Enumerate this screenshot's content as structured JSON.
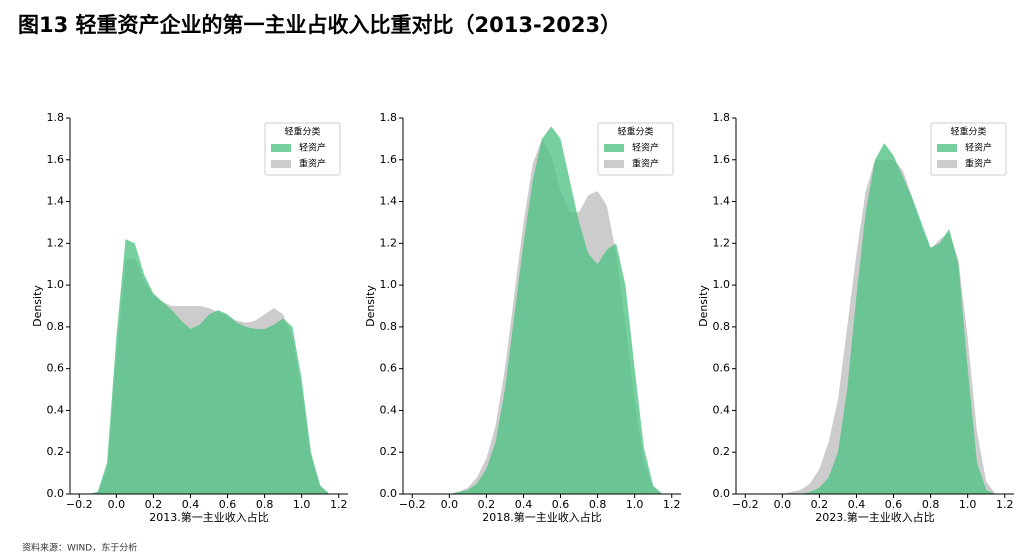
{
  "title": "图13 轻重资产企业的第一主业占收入比重对比（2013-2023）",
  "source": "资料来源：WIND，东于分析",
  "chart_data": [
    {
      "type": "area",
      "xlabel": "2013.第一主业收入占比",
      "ylabel": "Density",
      "legend_title": "轻重分类",
      "legend": "upper right",
      "xlim": [
        -0.25,
        1.25
      ],
      "ylim": [
        0,
        1.8
      ],
      "xticks": [
        {
          "value": -0.2,
          "label": "−0.2"
        },
        {
          "value": 0,
          "label": "0.0"
        },
        0.2,
        0.4,
        0.6,
        0.8,
        {
          "value": 1,
          "label": "1.0"
        },
        1.2
      ],
      "yticks": [
        {
          "value": 0,
          "label": "0.0"
        },
        0.2,
        0.4,
        0.6,
        0.8,
        {
          "value": 1,
          "label": "1.0"
        },
        1.2,
        1.4,
        1.6,
        1.8
      ],
      "x": [
        -0.2,
        -0.15,
        -0.1,
        -0.05,
        0,
        0.05,
        0.1,
        0.15,
        0.2,
        0.25,
        0.3,
        0.35,
        0.4,
        0.45,
        0.5,
        0.55,
        0.6,
        0.65,
        0.7,
        0.75,
        0.8,
        0.85,
        0.9,
        0.95,
        1.0,
        1.05,
        1.1,
        1.15,
        1.2
      ],
      "series": [
        {
          "name": "重资产",
          "color": "#cccccc",
          "values": [
            0,
            0,
            0.01,
            0.12,
            0.65,
            1.12,
            1.13,
            1.02,
            0.95,
            0.92,
            0.9,
            0.9,
            0.9,
            0.9,
            0.89,
            0.87,
            0.85,
            0.83,
            0.82,
            0.83,
            0.86,
            0.89,
            0.86,
            0.75,
            0.5,
            0.18,
            0.04,
            0,
            0
          ]
        },
        {
          "name": "轻资产",
          "color": "#4ec283",
          "values": [
            0,
            0,
            0.01,
            0.15,
            0.75,
            1.22,
            1.2,
            1.05,
            0.96,
            0.92,
            0.88,
            0.83,
            0.79,
            0.81,
            0.86,
            0.88,
            0.86,
            0.82,
            0.8,
            0.79,
            0.79,
            0.81,
            0.84,
            0.8,
            0.55,
            0.2,
            0.04,
            0,
            0
          ]
        }
      ]
    },
    {
      "type": "area",
      "xlabel": "2018.第一主业收入占比",
      "ylabel": "Density",
      "legend_title": "轻重分类",
      "legend": "upper right",
      "xlim": [
        -0.25,
        1.25
      ],
      "ylim": [
        0,
        1.8
      ],
      "xticks": [
        {
          "value": -0.2,
          "label": "−0.2"
        },
        {
          "value": 0,
          "label": "0.0"
        },
        0.2,
        0.4,
        0.6,
        0.8,
        {
          "value": 1,
          "label": "1.0"
        },
        1.2
      ],
      "yticks": [
        {
          "value": 0,
          "label": "0.0"
        },
        0.2,
        0.4,
        0.6,
        0.8,
        {
          "value": 1,
          "label": "1.0"
        },
        1.2,
        1.4,
        1.6,
        1.8
      ],
      "x": [
        -0.2,
        -0.15,
        -0.1,
        -0.05,
        0,
        0.05,
        0.1,
        0.15,
        0.2,
        0.25,
        0.3,
        0.35,
        0.4,
        0.45,
        0.5,
        0.55,
        0.6,
        0.65,
        0.7,
        0.75,
        0.8,
        0.85,
        0.9,
        0.95,
        1.0,
        1.05,
        1.1,
        1.15,
        1.2
      ],
      "series": [
        {
          "name": "重资产",
          "color": "#cccccc",
          "values": [
            0,
            0,
            0,
            0,
            0,
            0.01,
            0.03,
            0.08,
            0.17,
            0.33,
            0.6,
            0.95,
            1.3,
            1.58,
            1.7,
            1.62,
            1.45,
            1.35,
            1.35,
            1.43,
            1.45,
            1.38,
            1.15,
            0.8,
            0.45,
            0.15,
            0.03,
            0,
            0
          ]
        },
        {
          "name": "轻资产",
          "color": "#4ec283",
          "values": [
            0,
            0,
            0,
            0,
            0,
            0.01,
            0.02,
            0.05,
            0.12,
            0.25,
            0.5,
            0.85,
            1.2,
            1.5,
            1.7,
            1.76,
            1.7,
            1.5,
            1.3,
            1.15,
            1.1,
            1.17,
            1.2,
            1.0,
            0.6,
            0.22,
            0.04,
            0,
            0
          ]
        }
      ]
    },
    {
      "type": "area",
      "xlabel": "2023.第一主业收入占比",
      "ylabel": "Density",
      "legend_title": "轻重分类",
      "legend": "upper right",
      "xlim": [
        -0.25,
        1.25
      ],
      "ylim": [
        0,
        1.8
      ],
      "xticks": [
        {
          "value": -0.2,
          "label": "−0.2"
        },
        {
          "value": 0,
          "label": "0.0"
        },
        0.2,
        0.4,
        0.6,
        0.8,
        {
          "value": 1,
          "label": "1.0"
        },
        1.2
      ],
      "yticks": [
        {
          "value": 0,
          "label": "0.0"
        },
        0.2,
        0.4,
        0.6,
        0.8,
        {
          "value": 1,
          "label": "1.0"
        },
        1.2,
        1.4,
        1.6,
        1.8
      ],
      "x": [
        -0.2,
        -0.15,
        -0.1,
        -0.05,
        0,
        0.05,
        0.1,
        0.15,
        0.2,
        0.25,
        0.3,
        0.35,
        0.4,
        0.45,
        0.5,
        0.55,
        0.6,
        0.65,
        0.7,
        0.75,
        0.8,
        0.85,
        0.9,
        0.95,
        1.0,
        1.05,
        1.1,
        1.15,
        1.2
      ],
      "series": [
        {
          "name": "重资产",
          "color": "#cccccc",
          "values": [
            0,
            0,
            0,
            0,
            0,
            0.01,
            0.02,
            0.05,
            0.12,
            0.25,
            0.45,
            0.8,
            1.15,
            1.45,
            1.6,
            1.6,
            1.6,
            1.55,
            1.42,
            1.28,
            1.17,
            1.22,
            1.25,
            1.12,
            0.75,
            0.3,
            0.06,
            0,
            0
          ]
        },
        {
          "name": "轻资产",
          "color": "#4ec283",
          "values": [
            0,
            0,
            0,
            0,
            0,
            0,
            0,
            0.01,
            0.03,
            0.08,
            0.2,
            0.5,
            0.95,
            1.35,
            1.6,
            1.68,
            1.62,
            1.52,
            1.42,
            1.3,
            1.18,
            1.2,
            1.27,
            1.1,
            0.6,
            0.15,
            0.02,
            0,
            0
          ]
        }
      ]
    }
  ]
}
